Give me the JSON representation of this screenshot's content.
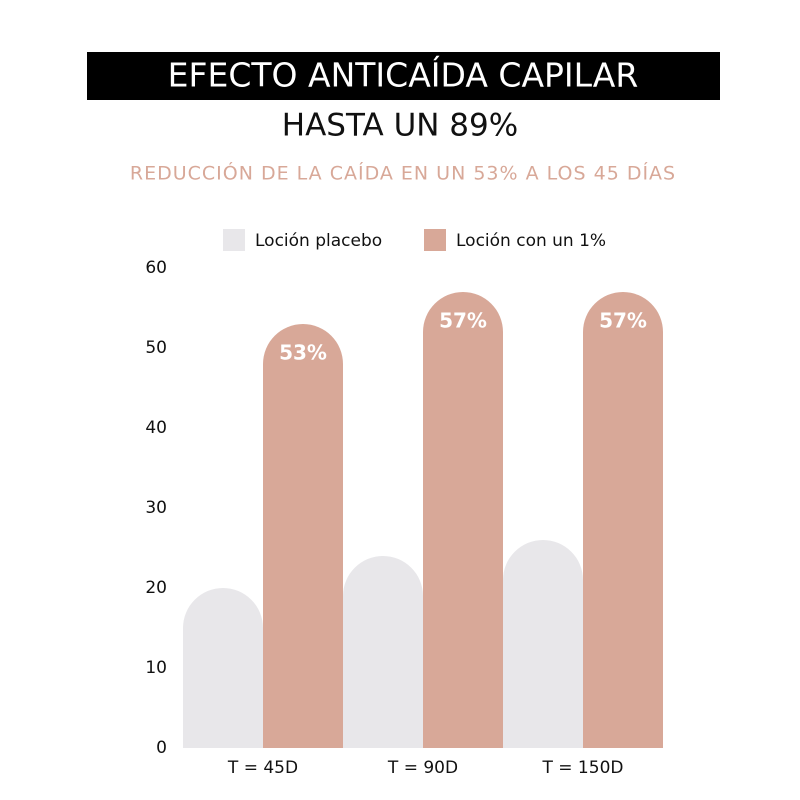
{
  "chart_data": {
    "type": "bar",
    "title": "EFECTO ANTICAÍDA CAPILAR",
    "subtitle": "HASTA UN 89%",
    "caption": "REDUCCIÓN DE LA CAÍDA EN UN 53% A LOS 45 DÍAS",
    "categories": [
      "T = 45D",
      "T = 90D",
      "T = 150D"
    ],
    "series": [
      {
        "name": "Loción placebo",
        "color": "#e8e7ea",
        "values": [
          20,
          24,
          26
        ]
      },
      {
        "name": "Loción con un 1%",
        "color": "#d8a898",
        "values": [
          53,
          57,
          57
        ],
        "value_labels": [
          "53%",
          "57%",
          "57%"
        ]
      }
    ],
    "ylim": [
      0,
      60
    ],
    "yticks": [
      0,
      10,
      20,
      30,
      40,
      50,
      60
    ],
    "legend": "top"
  }
}
